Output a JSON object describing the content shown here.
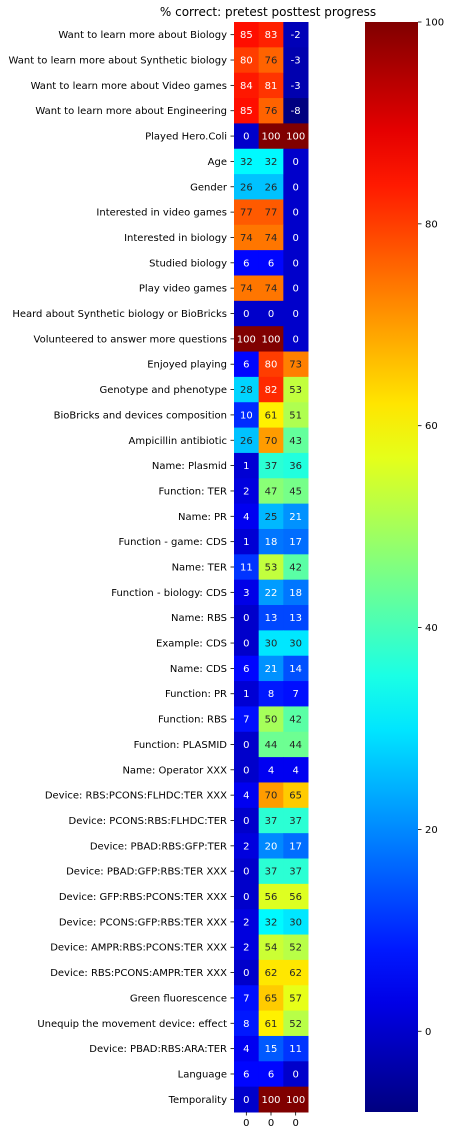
{
  "chart_data": {
    "type": "heatmap",
    "title": "% correct: pretest posttest progress",
    "colormap": "jet",
    "columns": [
      "0",
      "0",
      "0"
    ],
    "rows": [
      {
        "label": "Want to learn more about Biology",
        "values": [
          85,
          83,
          -2
        ]
      },
      {
        "label": "Want to learn more about Synthetic biology",
        "values": [
          80,
          76,
          -3
        ]
      },
      {
        "label": "Want to learn more about Video games",
        "values": [
          84,
          81,
          -3
        ]
      },
      {
        "label": "Want to learn more about Engineering",
        "values": [
          85,
          76,
          -8
        ]
      },
      {
        "label": "Played Hero.Coli",
        "values": [
          0,
          100,
          100
        ]
      },
      {
        "label": "Age",
        "values": [
          32,
          32,
          0
        ]
      },
      {
        "label": "Gender",
        "values": [
          26,
          26,
          0
        ]
      },
      {
        "label": "Interested in video games",
        "values": [
          77,
          77,
          0
        ]
      },
      {
        "label": "Interested in biology",
        "values": [
          74,
          74,
          0
        ]
      },
      {
        "label": "Studied biology",
        "values": [
          6,
          6,
          0
        ]
      },
      {
        "label": "Play video games",
        "values": [
          74,
          74,
          0
        ]
      },
      {
        "label": "Heard about Synthetic biology or BioBricks",
        "values": [
          0,
          0,
          0
        ]
      },
      {
        "label": "Volunteered to answer more questions",
        "values": [
          100,
          100,
          0
        ]
      },
      {
        "label": "Enjoyed playing",
        "values": [
          6,
          80,
          73
        ]
      },
      {
        "label": "Genotype and phenotype",
        "values": [
          28,
          82,
          53
        ]
      },
      {
        "label": "BioBricks and devices composition",
        "values": [
          10,
          61,
          51
        ]
      },
      {
        "label": "Ampicillin antibiotic",
        "values": [
          26,
          70,
          43
        ]
      },
      {
        "label": "Name: Plasmid",
        "values": [
          1,
          37,
          36
        ]
      },
      {
        "label": "Function: TER",
        "values": [
          2,
          47,
          45
        ]
      },
      {
        "label": "Name: PR",
        "values": [
          4,
          25,
          21
        ]
      },
      {
        "label": "Function - game: CDS",
        "values": [
          1,
          18,
          17
        ]
      },
      {
        "label": "Name: TER",
        "values": [
          11,
          53,
          42
        ]
      },
      {
        "label": "Function - biology: CDS",
        "values": [
          3,
          22,
          18
        ]
      },
      {
        "label": "Name: RBS",
        "values": [
          0,
          13,
          13
        ]
      },
      {
        "label": "Example: CDS",
        "values": [
          0,
          30,
          30
        ]
      },
      {
        "label": "Name: CDS",
        "values": [
          6,
          21,
          14
        ]
      },
      {
        "label": "Function: PR",
        "values": [
          1,
          8,
          7
        ]
      },
      {
        "label": "Function: RBS",
        "values": [
          7,
          50,
          42
        ]
      },
      {
        "label": "Function: PLASMID",
        "values": [
          0,
          44,
          44
        ]
      },
      {
        "label": "Name: Operator XXX",
        "values": [
          0,
          4,
          4
        ]
      },
      {
        "label": "Device: RBS:PCONS:FLHDC:TER XXX",
        "values": [
          4,
          70,
          65
        ]
      },
      {
        "label": "Device: PCONS:RBS:FLHDC:TER",
        "values": [
          0,
          37,
          37
        ]
      },
      {
        "label": "Device: PBAD:RBS:GFP:TER",
        "values": [
          2,
          20,
          17
        ]
      },
      {
        "label": "Device: PBAD:GFP:RBS:TER XXX",
        "values": [
          0,
          37,
          37
        ]
      },
      {
        "label": "Device: GFP:RBS:PCONS:TER XXX",
        "values": [
          0,
          56,
          56
        ]
      },
      {
        "label": "Device: PCONS:GFP:RBS:TER XXX",
        "values": [
          2,
          32,
          30
        ]
      },
      {
        "label": "Device: AMPR:RBS:PCONS:TER XXX",
        "values": [
          2,
          54,
          52
        ]
      },
      {
        "label": "Device: RBS:PCONS:AMPR:TER XXX",
        "values": [
          0,
          62,
          62
        ]
      },
      {
        "label": "Green fluorescence",
        "values": [
          7,
          65,
          57
        ]
      },
      {
        "label": "Unequip the movement device: effect",
        "values": [
          8,
          61,
          52
        ]
      },
      {
        "label": "Device: PBAD:RBS:ARA:TER",
        "values": [
          4,
          15,
          11
        ]
      },
      {
        "label": "Language",
        "values": [
          6,
          6,
          0
        ]
      },
      {
        "label": "Temporality",
        "values": [
          0,
          100,
          100
        ]
      }
    ],
    "color_range": [
      -8,
      100
    ],
    "colorbar_ticks": [
      0,
      20,
      40,
      60,
      80,
      100
    ]
  }
}
